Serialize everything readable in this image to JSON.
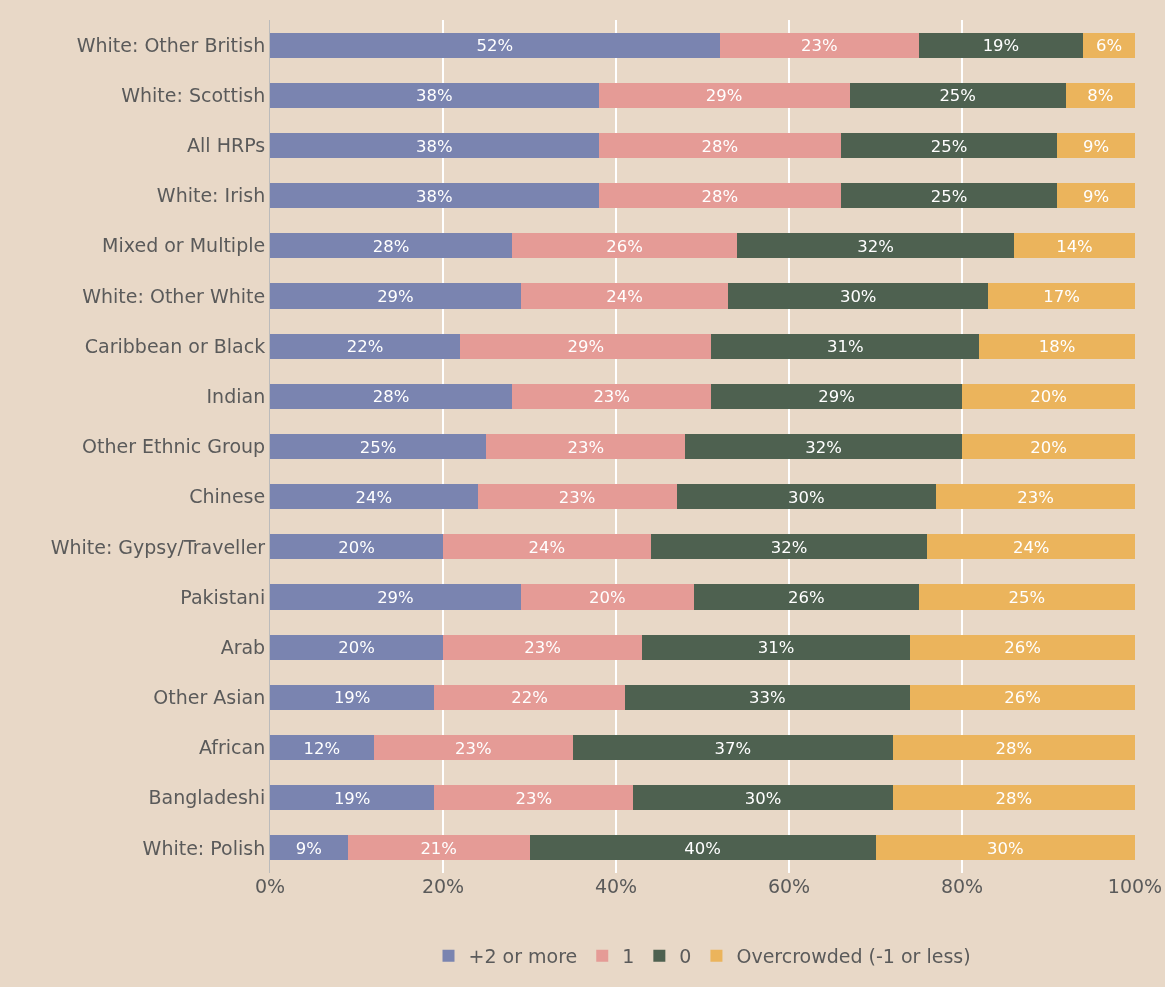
{
  "chart_data": {
    "type": "bar",
    "orientation": "horizontal",
    "stacked": true,
    "categories": [
      "White: Other British",
      "White: Scottish",
      "All HRPs",
      "White: Irish",
      "Mixed or Multiple",
      "White: Other White",
      "Caribbean or Black",
      "Indian",
      "Other Ethnic Group",
      "Chinese",
      "White: Gypsy/Traveller",
      "Pakistani",
      "Arab",
      "Other Asian",
      "African",
      "Bangladeshi",
      "White: Polish"
    ],
    "series": [
      {
        "name": "+2 or more",
        "color": "#7a84b0",
        "values": [
          52,
          38,
          38,
          38,
          28,
          29,
          22,
          28,
          25,
          24,
          20,
          29,
          20,
          19,
          12,
          19,
          9
        ],
        "value_labels": [
          "52%",
          "38%",
          "38%",
          "38%",
          "28%",
          "29%",
          "22%",
          "28%",
          "25%",
          "24%",
          "20%",
          "29%",
          "20%",
          "19%",
          "12%",
          "19%",
          "9%"
        ]
      },
      {
        "name": "1",
        "color": "#e59b96",
        "values": [
          23,
          29,
          28,
          28,
          26,
          24,
          29,
          23,
          23,
          23,
          24,
          20,
          23,
          22,
          23,
          23,
          21
        ],
        "value_labels": [
          "23%",
          "29%",
          "28%",
          "28%",
          "26%",
          "24%",
          "29%",
          "23%",
          "23%",
          "23%",
          "24%",
          "20%",
          "23%",
          "22%",
          "23%",
          "23%",
          "21%"
        ]
      },
      {
        "name": "0",
        "color": "#4e6150",
        "values": [
          19,
          25,
          25,
          25,
          32,
          30,
          31,
          29,
          32,
          30,
          32,
          26,
          31,
          33,
          37,
          30,
          40
        ],
        "value_labels": [
          "19%",
          "25%",
          "25%",
          "25%",
          "32%",
          "30%",
          "31%",
          "29%",
          "32%",
          "30%",
          "32%",
          "26%",
          "31%",
          "33%",
          "37%",
          "30%",
          "40%"
        ]
      },
      {
        "name": "Overcrowded (-1 or less)",
        "color": "#ebb45c",
        "values": [
          6,
          8,
          9,
          9,
          14,
          17,
          18,
          20,
          20,
          23,
          24,
          25,
          26,
          26,
          28,
          28,
          30
        ],
        "value_labels": [
          "6%",
          "8%",
          "9%",
          "9%",
          "14%",
          "17%",
          "18%",
          "20%",
          "20%",
          "23%",
          "24%",
          "25%",
          "26%",
          "26%",
          "28%",
          "28%",
          "30%"
        ]
      }
    ],
    "xlim": [
      0,
      100
    ],
    "xticks": [
      {
        "value": 0,
        "label": "0%"
      },
      {
        "value": 20,
        "label": "20%"
      },
      {
        "value": 40,
        "label": "40%"
      },
      {
        "value": 60,
        "label": "60%"
      },
      {
        "value": 80,
        "label": "80%"
      },
      {
        "value": 100,
        "label": "100%"
      }
    ],
    "grid": "x",
    "legend": "bottom"
  }
}
